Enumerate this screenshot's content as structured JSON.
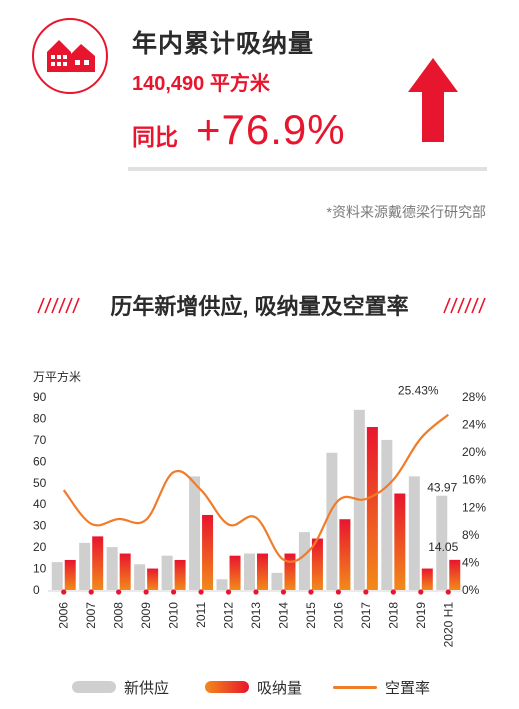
{
  "header": {
    "title": "年内累计吸纳量",
    "amount": "140,490 平方米",
    "yoy_label": "同比",
    "yoy_value": "+76.9%",
    "source": "*资料来源戴德梁行研究部"
  },
  "colors": {
    "brand_red": "#e8152e",
    "supply_gray": "#cfcfcf",
    "absorption_gradient": [
      "#f28a1a",
      "#e8152e"
    ],
    "vacancy_orange": "#f07c2a"
  },
  "chart_data": {
    "type": "bar",
    "title": "历年新增供应, 吸纳量及空置率",
    "y_left_unit": "万平方米",
    "ylim_left": [
      0,
      90
    ],
    "y_left_ticks": [
      "0",
      "10",
      "20",
      "30",
      "40",
      "50",
      "60",
      "70",
      "80",
      "90"
    ],
    "ylim_right": [
      0,
      28
    ],
    "y_right_ticks": [
      "0%",
      "4%",
      "8%",
      "12%",
      "16%",
      "20%",
      "24%",
      "28%"
    ],
    "categories": [
      "2006",
      "2007",
      "2008",
      "2009",
      "2010",
      "2011",
      "2012",
      "2013",
      "2014",
      "2015",
      "2016",
      "2017",
      "2018",
      "2019",
      "2020 H1"
    ],
    "series": [
      {
        "name": "新供应",
        "kind": "bar",
        "axis": "left",
        "values": [
          13,
          22,
          20,
          12,
          16,
          53,
          5,
          17,
          8,
          27,
          64,
          84,
          70,
          53,
          43.97
        ]
      },
      {
        "name": "吸纳量",
        "kind": "bar",
        "axis": "left",
        "values": [
          14,
          25,
          17,
          10,
          14,
          35,
          16,
          17,
          17,
          24,
          33,
          76,
          45,
          10,
          14.05
        ]
      },
      {
        "name": "空置率",
        "kind": "line",
        "axis": "right",
        "values": [
          14.5,
          9.6,
          10.3,
          10.2,
          17.1,
          14.5,
          9.5,
          10.5,
          4.4,
          6.0,
          13.0,
          13.2,
          16.0,
          22.0,
          25.43
        ]
      }
    ],
    "annotations": [
      {
        "series": "空置率",
        "category": "2020 H1",
        "text": "25.43%"
      },
      {
        "series": "新供应",
        "category": "2020 H1",
        "text": "43.97"
      },
      {
        "series": "吸纳量",
        "category": "2020 H1",
        "text": "14.05"
      }
    ],
    "legend": [
      "新供应",
      "吸纳量",
      "空置率"
    ],
    "legend_position": "bottom",
    "grid": false
  }
}
